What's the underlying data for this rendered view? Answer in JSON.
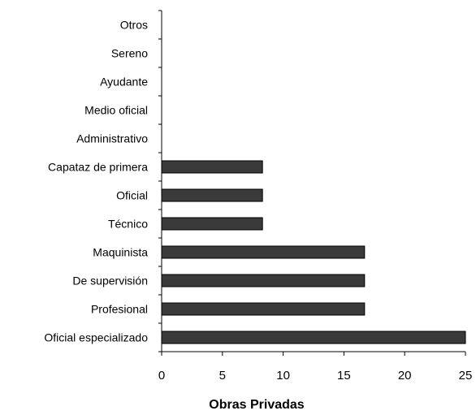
{
  "chart_data": {
    "type": "bar",
    "orientation": "horizontal",
    "categories": [
      "Otros",
      "Sereno",
      "Ayudante",
      "Medio oficial",
      "Administrativo",
      "Capataz de primera",
      "Oficial",
      "Técnico",
      "Maquinista",
      "De supervisión",
      "Profesional",
      "Oficial especializado"
    ],
    "values": [
      0,
      0,
      0,
      0,
      0,
      8.3,
      8.3,
      8.3,
      16.7,
      16.7,
      16.7,
      25
    ],
    "xlabel": "Obras Privadas",
    "ylabel": "",
    "xlim": [
      0,
      25
    ],
    "xticks": [
      0,
      5,
      10,
      15,
      20,
      25
    ],
    "grid": false,
    "bar_color": "#3a3a3a",
    "bar_edge_color": "#000000"
  }
}
